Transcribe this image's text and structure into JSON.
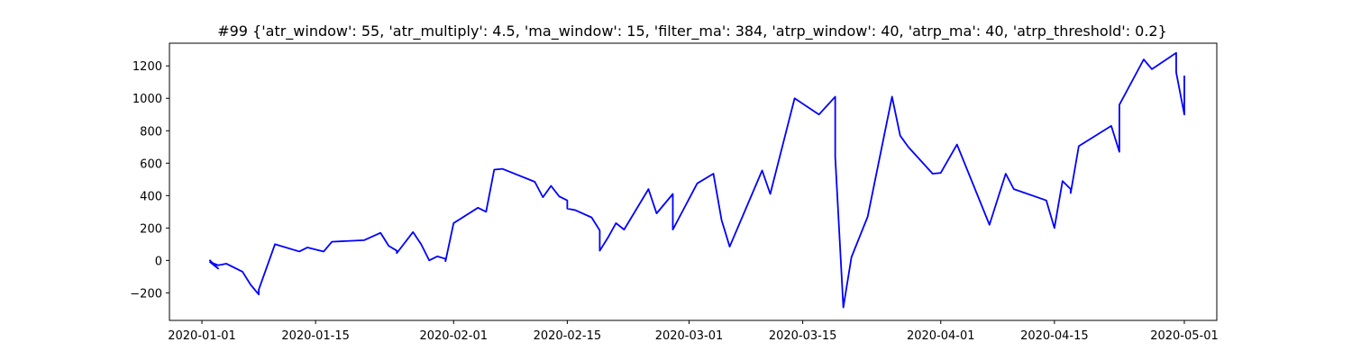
{
  "chart_data": {
    "type": "line",
    "title": "#99 {'atr_window': 55, 'atr_multiply': 4.5, 'ma_window': 15, 'filter_ma': 384, 'atrp_window': 40, 'atrp_ma': 40, 'atrp_threshold': 0.2}",
    "xlabel": "",
    "ylabel": "",
    "x_type": "date",
    "xlim": [
      "2019-12-28",
      "2020-05-05"
    ],
    "ylim": [
      -370,
      1340
    ],
    "xticks": [
      "2020-01-01",
      "2020-01-15",
      "2020-02-01",
      "2020-02-15",
      "2020-03-01",
      "2020-03-15",
      "2020-04-01",
      "2020-04-15",
      "2020-05-01"
    ],
    "yticks": [
      -200,
      0,
      200,
      400,
      600,
      800,
      1000,
      1200
    ],
    "ytick_labels": [
      "−200",
      "0",
      "200",
      "400",
      "600",
      "800",
      "1000",
      "1200"
    ],
    "grid": false,
    "legend": null,
    "series": [
      {
        "color": "#0000ff",
        "x": [
          "2020-01-02",
          "2020-01-03",
          "2020-01-02",
          "2020-01-03",
          "2020-01-04",
          "2020-01-06",
          "2020-01-07",
          "2020-01-08",
          "2020-01-08",
          "2020-01-10",
          "2020-01-13",
          "2020-01-14",
          "2020-01-16",
          "2020-01-17",
          "2020-01-21",
          "2020-01-23",
          "2020-01-24",
          "2020-01-25",
          "2020-01-25",
          "2020-01-27",
          "2020-01-28",
          "2020-01-29",
          "2020-01-30",
          "2020-01-31",
          "2020-01-31",
          "2020-02-01",
          "2020-02-04",
          "2020-02-05",
          "2020-02-06",
          "2020-02-07",
          "2020-02-11",
          "2020-02-12",
          "2020-02-13",
          "2020-02-14",
          "2020-02-15",
          "2020-02-15",
          "2020-02-16",
          "2020-02-18",
          "2020-02-19",
          "2020-02-19",
          "2020-02-20",
          "2020-02-21",
          "2020-02-22",
          "2020-02-22",
          "2020-02-25",
          "2020-02-26",
          "2020-02-28",
          "2020-02-28",
          "2020-03-02",
          "2020-03-04",
          "2020-03-05",
          "2020-03-06",
          "2020-03-10",
          "2020-03-11",
          "2020-03-14",
          "2020-03-17",
          "2020-03-19",
          "2020-03-19",
          "2020-03-20",
          "2020-03-21",
          "2020-03-23",
          "2020-03-26",
          "2020-03-27",
          "2020-03-28",
          "2020-03-31",
          "2020-04-01",
          "2020-04-03",
          "2020-04-07",
          "2020-04-09",
          "2020-04-10",
          "2020-04-14",
          "2020-04-15",
          "2020-04-16",
          "2020-04-17",
          "2020-04-17",
          "2020-04-18",
          "2020-04-22",
          "2020-04-23",
          "2020-04-23",
          "2020-04-26",
          "2020-04-27",
          "2020-04-30",
          "2020-04-30",
          "2020-05-01",
          "2020-05-01"
        ],
        "y": [
          0,
          -50,
          -10,
          -30,
          -20,
          -70,
          -150,
          -210,
          -180,
          100,
          55,
          80,
          55,
          115,
          125,
          170,
          90,
          60,
          45,
          175,
          100,
          0,
          25,
          10,
          -5,
          230,
          325,
          300,
          560,
          565,
          485,
          390,
          460,
          395,
          370,
          320,
          310,
          265,
          185,
          60,
          140,
          230,
          190,
          190,
          440,
          290,
          410,
          190,
          475,
          535,
          250,
          85,
          555,
          410,
          1000,
          900,
          1010,
          640,
          -290,
          20,
          270,
          1010,
          770,
          700,
          535,
          540,
          715,
          220,
          535,
          440,
          370,
          200,
          490,
          440,
          415,
          705,
          830,
          670,
          960,
          1240,
          1180,
          1280,
          1160,
          900,
          1135
        ]
      }
    ]
  }
}
